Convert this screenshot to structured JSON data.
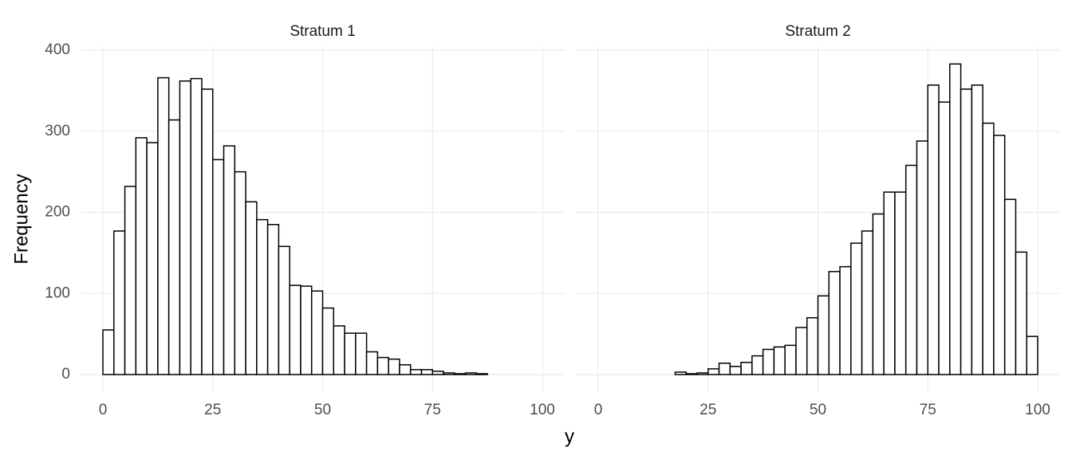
{
  "chart_data": {
    "type": "histogram",
    "xlabel": "y",
    "ylabel": "Frequency",
    "xlim": [
      0,
      100
    ],
    "xticks": [
      0,
      25,
      50,
      75,
      100
    ],
    "ylim": [
      0,
      400
    ],
    "yticks": [
      0,
      100,
      200,
      300,
      400
    ],
    "grid": true,
    "color": "#ffffff",
    "edgecolor": "#000000",
    "bins": [
      0,
      2.5,
      5,
      7.5,
      10,
      12.5,
      15,
      17.5,
      20,
      22.5,
      25,
      27.5,
      30,
      32.5,
      35,
      37.5,
      40,
      42.5,
      45,
      47.5,
      50,
      52.5,
      55,
      57.5,
      60,
      62.5,
      65,
      67.5,
      70,
      72.5,
      75,
      77.5,
      80,
      82.5,
      85,
      87.5,
      90,
      92.5,
      95,
      97.5,
      100
    ],
    "series": [
      {
        "name": "Stratum 1",
        "values": [
          55,
          177,
          232,
          292,
          286,
          366,
          314,
          362,
          365,
          352,
          265,
          282,
          250,
          213,
          191,
          185,
          158,
          110,
          109,
          103,
          82,
          60,
          51,
          51,
          28,
          21,
          19,
          12,
          6,
          6,
          4,
          2,
          1,
          2,
          1,
          0,
          0,
          0,
          0,
          0
        ]
      },
      {
        "name": "Stratum 2",
        "values": [
          0,
          0,
          0,
          0,
          0,
          0,
          0,
          3,
          1,
          2,
          7,
          14,
          10,
          15,
          23,
          31,
          34,
          36,
          58,
          70,
          97,
          127,
          133,
          162,
          177,
          198,
          225,
          225,
          258,
          288,
          357,
          336,
          383,
          352,
          357,
          310,
          295,
          216,
          151,
          47
        ]
      }
    ]
  }
}
